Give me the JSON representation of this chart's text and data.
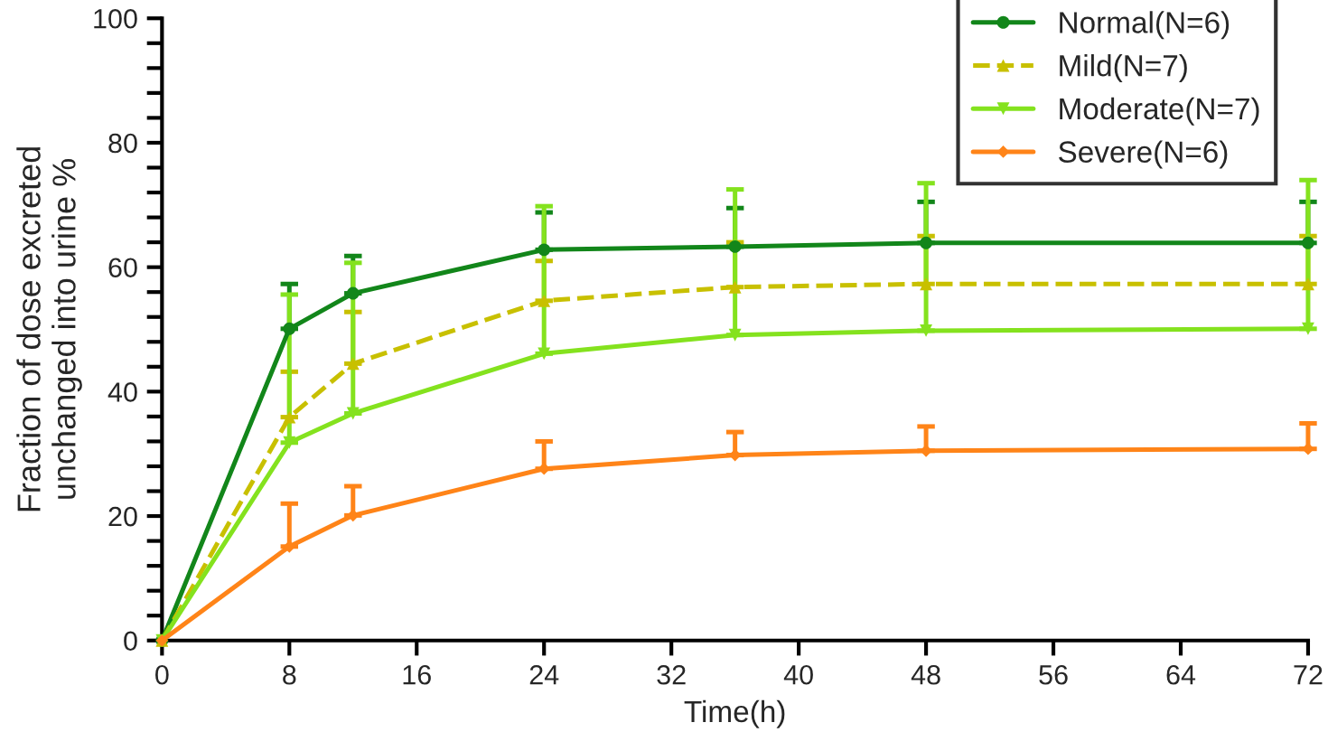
{
  "chart_data": {
    "type": "line",
    "xlabel": "Time(h)",
    "ylabel": "Fraction of dose excreted\nunchanged into urine %",
    "x": [
      0,
      8,
      12,
      24,
      36,
      48,
      72
    ],
    "xlim": [
      0,
      72
    ],
    "xticks": [
      0,
      8,
      16,
      24,
      32,
      40,
      48,
      56,
      64,
      72
    ],
    "ylim": [
      0,
      100
    ],
    "yticks": [
      0,
      {
        "value": 4,
        "label": null
      },
      {
        "value": 8,
        "label": null
      },
      {
        "value": 12,
        "label": null
      },
      {
        "value": 16,
        "label": null
      },
      20,
      {
        "value": 24,
        "label": null
      },
      {
        "value": 28,
        "label": null
      },
      {
        "value": 32,
        "label": null
      },
      {
        "value": 36,
        "label": null
      },
      40,
      {
        "value": 44,
        "label": null
      },
      {
        "value": 48,
        "label": null
      },
      {
        "value": 52,
        "label": null
      },
      {
        "value": 56,
        "label": null
      },
      60,
      {
        "value": 64,
        "label": null
      },
      {
        "value": 68,
        "label": null
      },
      {
        "value": 72,
        "label": null
      },
      {
        "value": 76,
        "label": null
      },
      80,
      {
        "value": 84,
        "label": null
      },
      {
        "value": 88,
        "label": null
      },
      {
        "value": 92,
        "label": null
      },
      {
        "value": 96,
        "label": null
      },
      100
    ],
    "grid": false,
    "legend": "top right",
    "series": [
      {
        "name": "Normal(N=6)",
        "color": "#12861a",
        "marker": "circle",
        "line_style": "solid",
        "values": [
          0,
          50.1,
          55.8,
          62.8,
          63.3,
          63.9,
          63.9
        ],
        "errors": [
          null,
          [
            50.1,
            57.3
          ],
          [
            55.8,
            61.8
          ],
          [
            62.8,
            68.8
          ],
          [
            63.3,
            69.5
          ],
          [
            63.9,
            70.5
          ],
          [
            63.9,
            70.5
          ]
        ]
      },
      {
        "name": "Mild(N=7)",
        "color": "#c8c000",
        "marker": "triangle",
        "line_style": "dashed",
        "values": [
          0,
          35.9,
          44.5,
          54.6,
          56.8,
          57.3,
          57.3
        ],
        "errors": [
          null,
          [
            35.9,
            43.2
          ],
          [
            44.5,
            52.8
          ],
          [
            54.6,
            61.0
          ],
          [
            56.8,
            64.0
          ],
          [
            57.3,
            65.0
          ],
          [
            57.3,
            65.0
          ]
        ]
      },
      {
        "name": "Moderate(N=7)",
        "color": "#84e21e",
        "marker": "triangle_down",
        "line_style": "solid",
        "values": [
          0,
          31.8,
          36.5,
          46.1,
          49.1,
          49.8,
          50.1
        ],
        "errors": [
          null,
          [
            31.8,
            55.6
          ],
          [
            36.5,
            60.7
          ],
          [
            46.1,
            69.8
          ],
          [
            49.1,
            72.5
          ],
          [
            49.8,
            73.5
          ],
          [
            50.1,
            74.0
          ]
        ]
      },
      {
        "name": "Severe(N=6)",
        "color": "#ff8418",
        "marker": "diamond",
        "line_style": "solid",
        "values": [
          0,
          15.1,
          20.1,
          27.6,
          29.8,
          30.5,
          30.8
        ],
        "errors": [
          null,
          [
            15.1,
            22.0
          ],
          [
            20.1,
            24.8
          ],
          [
            27.6,
            32.0
          ],
          [
            29.8,
            33.5
          ],
          [
            30.5,
            34.4
          ],
          [
            30.8,
            34.9
          ]
        ]
      }
    ]
  }
}
